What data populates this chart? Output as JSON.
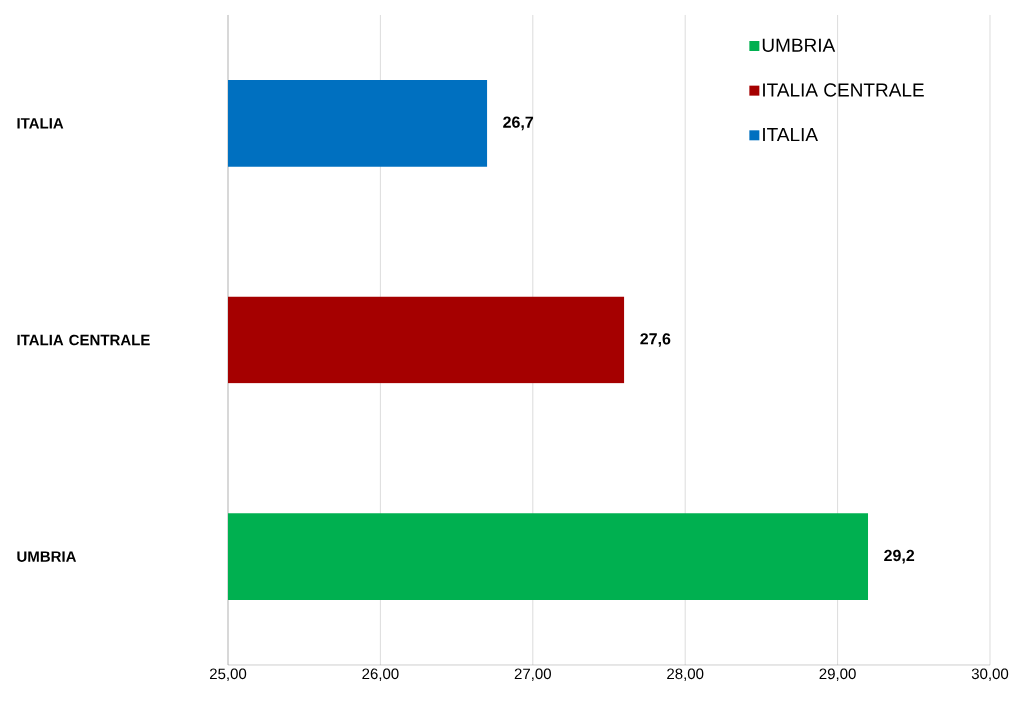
{
  "chart_data": {
    "type": "bar",
    "orientation": "horizontal",
    "categories": [
      "ITALIA",
      "ITALIA CENTRALE",
      "UMBRIA"
    ],
    "series": [
      {
        "name": "UMBRIA",
        "color": "#00b050",
        "values": [
          null,
          null,
          29.2
        ],
        "value_labels": [
          null,
          null,
          "29,2"
        ]
      },
      {
        "name": "ITALIA CENTRALE",
        "color": "#a50000",
        "values": [
          null,
          27.6,
          null
        ],
        "value_labels": [
          null,
          "27,6",
          null
        ]
      },
      {
        "name": "ITALIA",
        "color": "#0070c0",
        "values": [
          26.7,
          null,
          null
        ],
        "value_labels": [
          "26,7",
          null,
          null
        ]
      }
    ],
    "xlim": [
      25,
      30
    ],
    "xticks": [
      {
        "value": 25,
        "label": "25,00"
      },
      {
        "value": 26,
        "label": "26,00"
      },
      {
        "value": 27,
        "label": "27,00"
      },
      {
        "value": 28,
        "label": "28,00"
      },
      {
        "value": 29,
        "label": "29,00"
      },
      {
        "value": 30,
        "label": "30,00"
      }
    ],
    "grid": "x",
    "legend": "top right"
  }
}
